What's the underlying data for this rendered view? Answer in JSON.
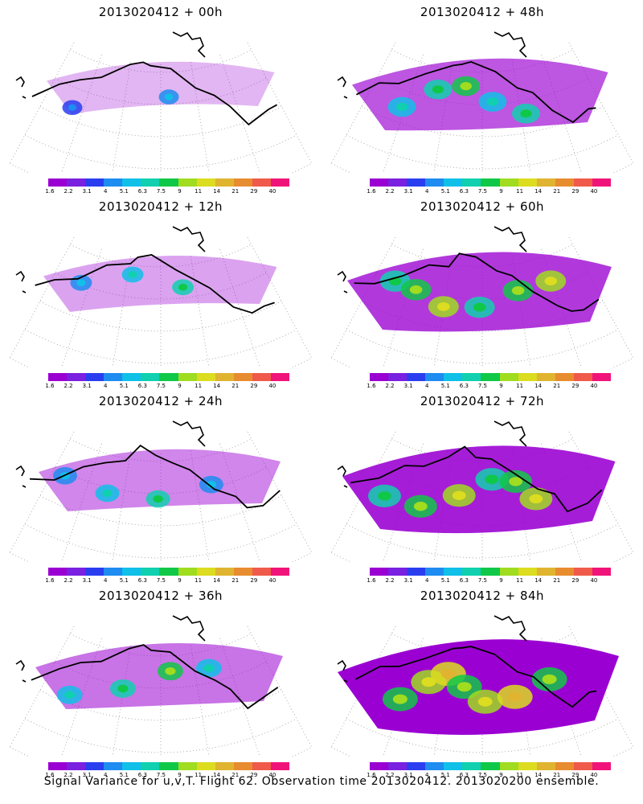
{
  "panels": [
    {
      "title": "2013020412 + 00h",
      "spread": 0.05
    },
    {
      "title": "2013020412 + 48h",
      "spread": 0.55
    },
    {
      "title": "2013020412 + 12h",
      "spread": 0.15
    },
    {
      "title": "2013020412 + 60h",
      "spread": 0.7
    },
    {
      "title": "2013020412 + 24h",
      "spread": 0.3
    },
    {
      "title": "2013020412 + 72h",
      "spread": 0.85
    },
    {
      "title": "2013020412 + 36h",
      "spread": 0.4
    },
    {
      "title": "2013020412 + 84h",
      "spread": 1.0
    }
  ],
  "colorbar": {
    "labels": [
      "1.6",
      "2.2",
      "3.1",
      "4",
      "5.1",
      "6.3",
      "7.5",
      "9",
      "11",
      "14",
      "21",
      "29",
      "40"
    ],
    "colors": [
      "#9b00d2",
      "#7a20e0",
      "#2a3ef0",
      "#1e8cf0",
      "#10c0e8",
      "#10d0b0",
      "#10c848",
      "#a0dc20",
      "#dcdc20",
      "#e0b430",
      "#e88c30",
      "#f05a4a",
      "#f0147a"
    ]
  },
  "footer": "Signal Variance for u,v,T. Flight 62. Observation time 2013020412. 2013020200 ensemble."
}
